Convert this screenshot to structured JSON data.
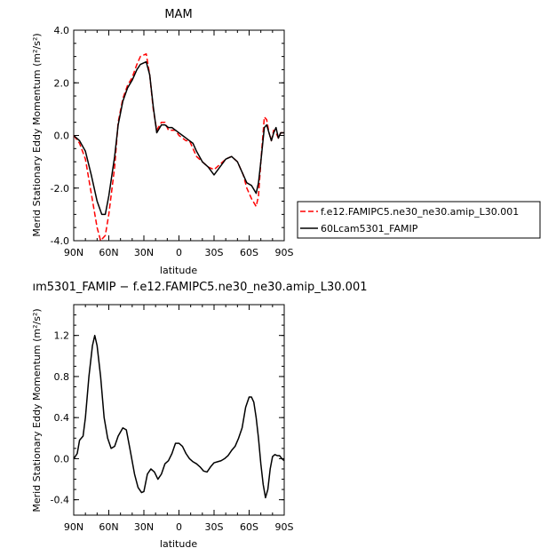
{
  "chart_data": [
    {
      "type": "line",
      "title": "MAM",
      "xlabel": "latitude",
      "ylabel_main": "Merid Stationary Eddy Momentum",
      "ylabel_unit": "(m²/s²)",
      "xlim": [
        90,
        -90
      ],
      "ylim": [
        -4,
        4
      ],
      "x_ticks": [
        90,
        60,
        30,
        0,
        -30,
        -60,
        -90
      ],
      "x_tick_labels": [
        "90N",
        "60N",
        "30N",
        "0",
        "30S",
        "60S",
        "90S"
      ],
      "y_ticks": [
        -4,
        -2,
        0,
        2,
        4
      ],
      "y_tick_labels": [
        "-4.0",
        "-2.0",
        "0.0",
        "2.0",
        "4.0"
      ],
      "legend_position": "right",
      "series": [
        {
          "name": "f.e12.FAMIPC5.ne30_ne30.amip_L30.001",
          "color": "#ff0000",
          "dash": "dashed",
          "points": [
            [
              90,
              0
            ],
            [
              85,
              -0.3
            ],
            [
              80,
              -0.9
            ],
            [
              75,
              -2.2
            ],
            [
              70,
              -3.5
            ],
            [
              67,
              -4.0
            ],
            [
              63,
              -3.8
            ],
            [
              60,
              -3.0
            ],
            [
              55,
              -1.2
            ],
            [
              52,
              0.5
            ],
            [
              48,
              1.4
            ],
            [
              44,
              1.9
            ],
            [
              40,
              2.2
            ],
            [
              36,
              2.7
            ],
            [
              33,
              3.0
            ],
            [
              28,
              3.1
            ],
            [
              25,
              2.3
            ],
            [
              22,
              1.0
            ],
            [
              19,
              0.2
            ],
            [
              15,
              0.5
            ],
            [
              12,
              0.5
            ],
            [
              9,
              0.2
            ],
            [
              6,
              0.2
            ],
            [
              3,
              0.2
            ],
            [
              0,
              0
            ],
            [
              -3,
              -0.1
            ],
            [
              -6,
              -0.2
            ],
            [
              -9,
              -0.2
            ],
            [
              -12,
              -0.5
            ],
            [
              -15,
              -0.8
            ],
            [
              -20,
              -1.0
            ],
            [
              -25,
              -1.2
            ],
            [
              -30,
              -1.3
            ],
            [
              -35,
              -1.1
            ],
            [
              -40,
              -0.9
            ],
            [
              -45,
              -0.8
            ],
            [
              -50,
              -1.0
            ],
            [
              -55,
              -1.5
            ],
            [
              -58,
              -2.0
            ],
            [
              -62,
              -2.4
            ],
            [
              -66,
              -2.7
            ],
            [
              -68,
              -2.3
            ],
            [
              -70,
              -1.0
            ],
            [
              -73,
              0.7
            ],
            [
              -75,
              0.6
            ],
            [
              -77,
              0.1
            ],
            [
              -79,
              -0.2
            ],
            [
              -81,
              0.2
            ],
            [
              -83,
              0.1
            ],
            [
              -85,
              -0.1
            ],
            [
              -87,
              0.1
            ],
            [
              -90,
              0.1
            ]
          ]
        },
        {
          "name": "60Lcam5301_FAMIP",
          "color": "#000000",
          "dash": "solid",
          "points": [
            [
              90,
              0
            ],
            [
              85,
              -0.2
            ],
            [
              80,
              -0.6
            ],
            [
              75,
              -1.5
            ],
            [
              70,
              -2.5
            ],
            [
              66,
              -3.0
            ],
            [
              63,
              -3.0
            ],
            [
              60,
              -2.3
            ],
            [
              55,
              -0.8
            ],
            [
              52,
              0.4
            ],
            [
              48,
              1.3
            ],
            [
              44,
              1.8
            ],
            [
              40,
              2.1
            ],
            [
              36,
              2.5
            ],
            [
              33,
              2.7
            ],
            [
              28,
              2.8
            ],
            [
              25,
              2.3
            ],
            [
              22,
              1.1
            ],
            [
              19,
              0.1
            ],
            [
              15,
              0.4
            ],
            [
              12,
              0.4
            ],
            [
              9,
              0.3
            ],
            [
              6,
              0.3
            ],
            [
              3,
              0.2
            ],
            [
              0,
              0.1
            ],
            [
              -3,
              0
            ],
            [
              -6,
              -0.1
            ],
            [
              -9,
              -0.2
            ],
            [
              -12,
              -0.3
            ],
            [
              -15,
              -0.6
            ],
            [
              -20,
              -1.0
            ],
            [
              -25,
              -1.2
            ],
            [
              -30,
              -1.5
            ],
            [
              -35,
              -1.2
            ],
            [
              -40,
              -0.9
            ],
            [
              -45,
              -0.8
            ],
            [
              -50,
              -1.0
            ],
            [
              -55,
              -1.5
            ],
            [
              -58,
              -1.8
            ],
            [
              -62,
              -1.9
            ],
            [
              -66,
              -2.2
            ],
            [
              -68,
              -1.8
            ],
            [
              -70,
              -1.0
            ],
            [
              -73,
              0.3
            ],
            [
              -75,
              0.4
            ],
            [
              -77,
              0.1
            ],
            [
              -79,
              -0.2
            ],
            [
              -81,
              0.1
            ],
            [
              -83,
              0.3
            ],
            [
              -85,
              -0.1
            ],
            [
              -87,
              0.1
            ],
            [
              -90,
              0.1
            ]
          ]
        }
      ]
    },
    {
      "type": "line",
      "title": "ım5301_FAMIP  −  f.e12.FAMIPC5.ne30_ne30.amip_L30.001",
      "xlabel": "latitude",
      "ylabel_main": "Merid Stationary Eddy Momentum",
      "ylabel_unit": "(m²/s²)",
      "xlim": [
        90,
        -90
      ],
      "ylim": [
        -0.55,
        1.5
      ],
      "x_ticks": [
        90,
        60,
        30,
        0,
        -30,
        -60,
        -90
      ],
      "x_tick_labels": [
        "90N",
        "60N",
        "30N",
        "0",
        "30S",
        "60S",
        "90S"
      ],
      "y_ticks": [
        -0.4,
        0,
        0.4,
        0.8,
        1.2
      ],
      "y_tick_labels": [
        "-0.4",
        "0.0",
        "0.4",
        "0.8",
        "1.2"
      ],
      "series": [
        {
          "color": "#000000",
          "dash": "solid",
          "points": [
            [
              90,
              0
            ],
            [
              87,
              0.05
            ],
            [
              85,
              0.18
            ],
            [
              82,
              0.22
            ],
            [
              80,
              0.4
            ],
            [
              77,
              0.8
            ],
            [
              74,
              1.1
            ],
            [
              72,
              1.2
            ],
            [
              70,
              1.1
            ],
            [
              67,
              0.8
            ],
            [
              64,
              0.4
            ],
            [
              61,
              0.2
            ],
            [
              58,
              0.1
            ],
            [
              55,
              0.12
            ],
            [
              52,
              0.22
            ],
            [
              48,
              0.3
            ],
            [
              45,
              0.28
            ],
            [
              42,
              0.1
            ],
            [
              38,
              -0.15
            ],
            [
              35,
              -0.28
            ],
            [
              32,
              -0.33
            ],
            [
              30,
              -0.32
            ],
            [
              27,
              -0.15
            ],
            [
              24,
              -0.1
            ],
            [
              21,
              -0.13
            ],
            [
              18,
              -0.2
            ],
            [
              15,
              -0.15
            ],
            [
              12,
              -0.05
            ],
            [
              9,
              -0.02
            ],
            [
              6,
              0.05
            ],
            [
              3,
              0.15
            ],
            [
              0,
              0.15
            ],
            [
              -3,
              0.12
            ],
            [
              -6,
              0.05
            ],
            [
              -9,
              0
            ],
            [
              -12,
              -0.03
            ],
            [
              -15,
              -0.05
            ],
            [
              -18,
              -0.08
            ],
            [
              -21,
              -0.12
            ],
            [
              -24,
              -0.13
            ],
            [
              -27,
              -0.08
            ],
            [
              -30,
              -0.04
            ],
            [
              -33,
              -0.03
            ],
            [
              -36,
              -0.02
            ],
            [
              -39,
              0
            ],
            [
              -42,
              0.03
            ],
            [
              -45,
              0.08
            ],
            [
              -48,
              0.12
            ],
            [
              -51,
              0.2
            ],
            [
              -54,
              0.3
            ],
            [
              -57,
              0.5
            ],
            [
              -60,
              0.6
            ],
            [
              -62,
              0.6
            ],
            [
              -64,
              0.55
            ],
            [
              -66,
              0.4
            ],
            [
              -68,
              0.2
            ],
            [
              -70,
              -0.05
            ],
            [
              -72,
              -0.25
            ],
            [
              -74,
              -0.38
            ],
            [
              -76,
              -0.3
            ],
            [
              -78,
              -0.1
            ],
            [
              -80,
              0.02
            ],
            [
              -82,
              0.04
            ],
            [
              -84,
              0.03
            ],
            [
              -86,
              0.03
            ],
            [
              -88,
              0.0
            ],
            [
              -90,
              -0.02
            ]
          ]
        }
      ]
    }
  ]
}
